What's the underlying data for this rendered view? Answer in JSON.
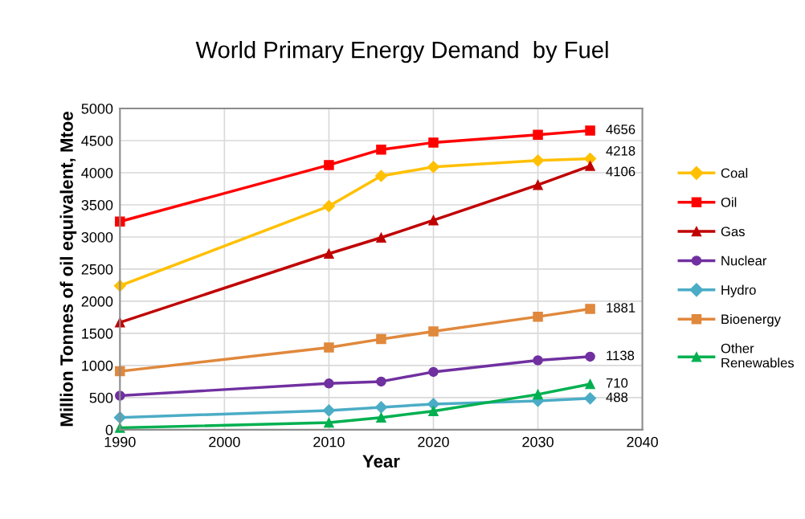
{
  "chart_data": {
    "type": "line",
    "title": "World Primary Energy Demand  by Fuel",
    "xlabel": "Year",
    "ylabel": "Million Tonnes of oil equivalent, Mtoe",
    "x": [
      1990,
      2010,
      2015,
      2020,
      2030,
      2035
    ],
    "xlim": [
      1990,
      2040
    ],
    "xticks": [
      1990,
      2000,
      2010,
      2020,
      2030,
      2040
    ],
    "ylim": [
      0,
      5000
    ],
    "yticks": [
      0,
      500,
      1000,
      1500,
      2000,
      2500,
      3000,
      3500,
      4000,
      4500,
      5000
    ],
    "grid": true,
    "legend": "right",
    "line_style": "solid",
    "series": [
      {
        "name": "Coal",
        "color": "#ffc000",
        "marker": "diamond",
        "values": [
          2240,
          3480,
          3950,
          4090,
          4190,
          4218
        ],
        "value_labels": [
          null,
          null,
          null,
          null,
          null,
          "4218"
        ]
      },
      {
        "name": "Oil",
        "color": "#ff0000",
        "marker": "square",
        "values": [
          3240,
          4120,
          4360,
          4470,
          4590,
          4656
        ],
        "value_labels": [
          null,
          null,
          null,
          null,
          null,
          "4656"
        ]
      },
      {
        "name": "Gas",
        "color": "#c00000",
        "marker": "triangle",
        "values": [
          1670,
          2740,
          2990,
          3260,
          3810,
          4106
        ],
        "value_labels": [
          null,
          null,
          null,
          null,
          null,
          "4106"
        ]
      },
      {
        "name": "Nuclear",
        "color": "#7030a0",
        "marker": "circle",
        "values": [
          530,
          720,
          750,
          900,
          1080,
          1138
        ],
        "value_labels": [
          null,
          null,
          null,
          null,
          null,
          "1138"
        ]
      },
      {
        "name": "Hydro",
        "color": "#4bacc6",
        "marker": "diamond",
        "values": [
          190,
          300,
          350,
          400,
          450,
          488
        ],
        "value_labels": [
          null,
          null,
          null,
          null,
          null,
          "488"
        ]
      },
      {
        "name": "Bioenergy",
        "color": "#e0883c",
        "marker": "square",
        "values": [
          910,
          1280,
          1410,
          1530,
          1760,
          1881
        ],
        "value_labels": [
          null,
          null,
          null,
          null,
          null,
          "1881"
        ]
      },
      {
        "name": "Other\nRenewables",
        "color": "#00b050",
        "marker": "triangle",
        "values": [
          30,
          110,
          190,
          290,
          550,
          710
        ],
        "value_labels": [
          null,
          null,
          null,
          null,
          null,
          "710"
        ]
      }
    ]
  }
}
